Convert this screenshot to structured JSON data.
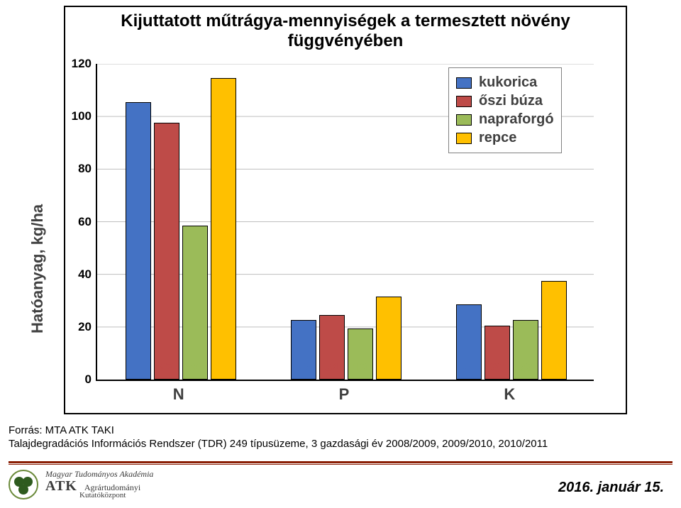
{
  "chart": {
    "type": "bar-grouped",
    "title": "Kijuttatott műtrágya-mennyiségek a termesztett növény függvényében",
    "title_fontsize": 24,
    "title_color": "#000000",
    "y_axis_label": "Hatóanyag, kg/ha",
    "ylim": [
      0,
      120
    ],
    "ytick_step": 20,
    "yticks": [
      0,
      20,
      40,
      60,
      80,
      100,
      120
    ],
    "categories": [
      "N",
      "P",
      "K"
    ],
    "series": [
      {
        "name": "kukorica",
        "color": "#4472c4",
        "values": [
          105,
          22,
          28
        ]
      },
      {
        "name": "őszi búza",
        "color": "#be4b48",
        "values": [
          97,
          24,
          20
        ]
      },
      {
        "name": "napraforgó",
        "color": "#9bbb59",
        "values": [
          58,
          19,
          22
        ]
      },
      {
        "name": "repce",
        "color": "#ffc000",
        "values": [
          114,
          31,
          37
        ]
      }
    ],
    "bar_border": "#000000",
    "grid_color": "#bfbfbf",
    "plot_border_color": "#000000",
    "background_color": "#ffffff",
    "label_fontsize": 19,
    "tick_fontsize": 17,
    "axis_fontsize": 22,
    "legend_border": "#808080",
    "legend_fontsize": 20
  },
  "source": {
    "line1": "Forrás: MTA ATK TAKI",
    "line2": "Talajdegradációs Információs Rendszer (TDR) 249 típusüzeme, 3 gazdasági év 2008/2009, 2009/2010, 2010/2011"
  },
  "footer": {
    "inst_line1": "Magyar Tudományos Akadémia",
    "inst_line2a": "ATK",
    "inst_line2b": "Agrártudományi",
    "inst_line3": "Kutatóközpont",
    "date": "2016. január 15.",
    "accent_color": "#8a1e04",
    "logo_fill": "#2e5b1f",
    "logo_ring": "#6a8a3a"
  }
}
